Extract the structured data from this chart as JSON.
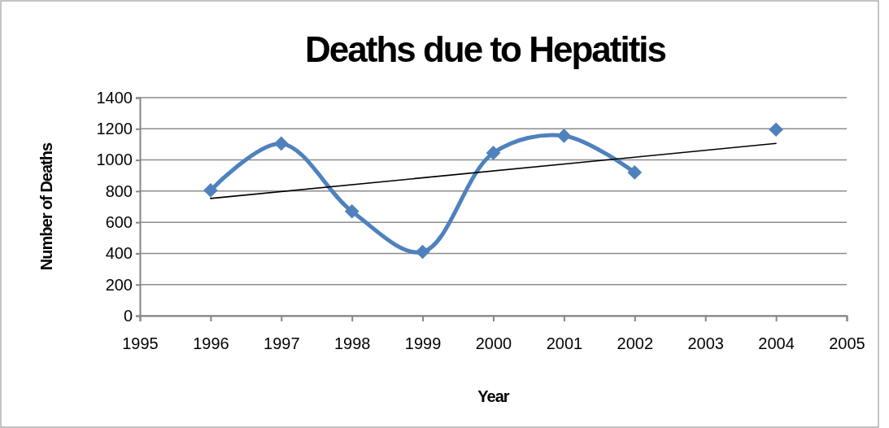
{
  "chart_data": {
    "type": "line",
    "title": "Deaths due to Hepatitis",
    "xlabel": "Year",
    "ylabel": "Number of Deaths",
    "x": [
      1996,
      1997,
      1998,
      1999,
      2000,
      2001,
      2002,
      2003,
      2004
    ],
    "series": [
      {
        "color": "#4f81bd",
        "values": [
          805,
          1105,
          670,
          410,
          1045,
          1155,
          920,
          null,
          1195
        ],
        "marker": "diamond"
      },
      {
        "type": "line",
        "color": "#000000",
        "x": [
          1996,
          2004
        ],
        "values": [
          753,
          1106
        ],
        "marker": "none"
      }
    ],
    "xlim": [
      1995,
      2005
    ],
    "xticks": [
      1995,
      1996,
      1997,
      1998,
      1999,
      2000,
      2001,
      2002,
      2003,
      2004,
      2005
    ],
    "ylim": [
      0,
      1400
    ],
    "yticks": [
      0,
      200,
      400,
      600,
      800,
      1000,
      1200,
      1400
    ],
    "grid": "y",
    "line_style": "solid"
  }
}
